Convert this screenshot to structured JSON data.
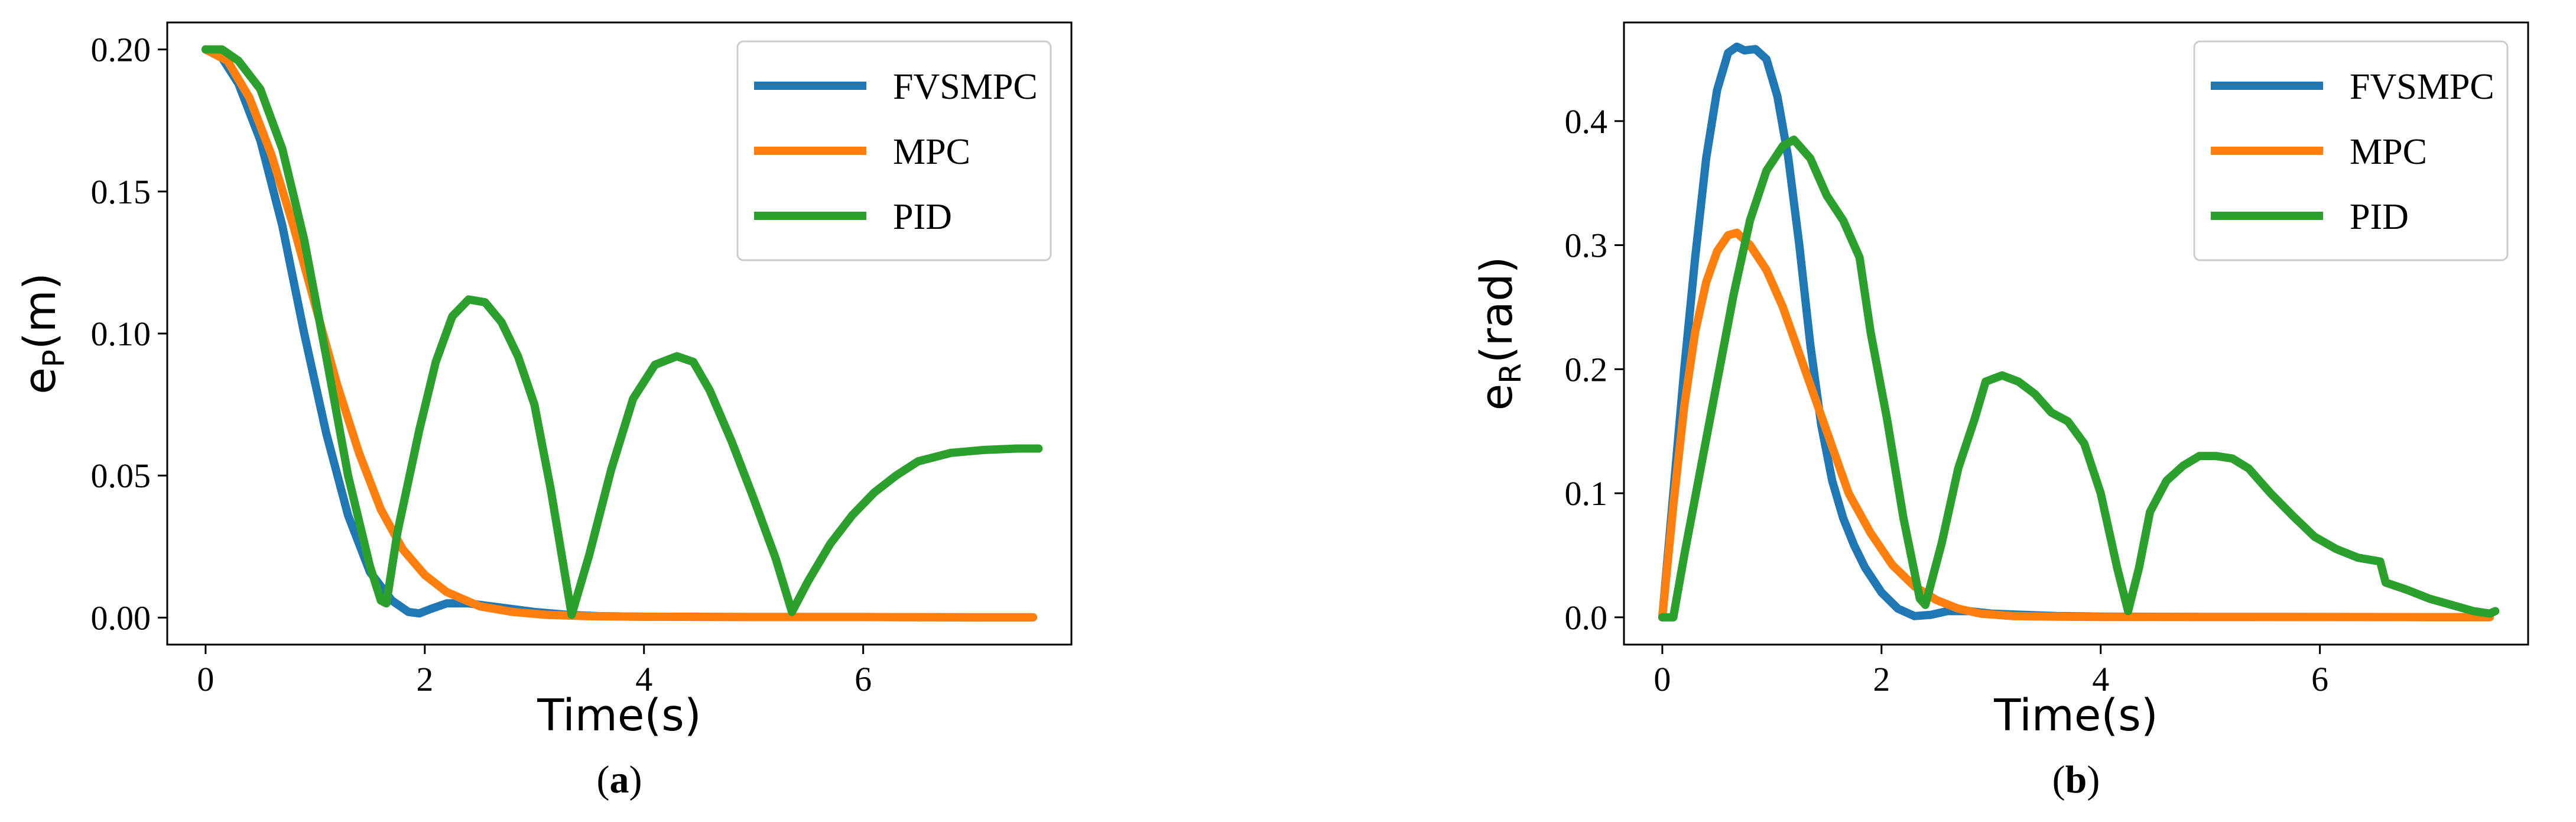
{
  "chart_data": [
    {
      "type": "line",
      "caption": "(a)",
      "caption_letter": "a",
      "xlabel": "Time(s)",
      "ylabel_main": "e",
      "ylabel_sub": "P",
      "ylabel_unit": "(m)",
      "xlim": [
        -0.35,
        7.9
      ],
      "ylim": [
        -0.0095,
        0.2095
      ],
      "xticks": [
        0,
        2,
        4,
        6
      ],
      "xtick_labels": [
        "0",
        "2",
        "4",
        "6"
      ],
      "yticks": [
        0.0,
        0.05,
        0.1,
        0.15,
        0.2
      ],
      "ytick_labels": [
        "0.00",
        "0.05",
        "0.10",
        "0.15",
        "0.20"
      ],
      "legend_position": "top-right",
      "series": [
        {
          "name": "FVSMPC",
          "color": "#1f77b4",
          "x": [
            0,
            0.15,
            0.3,
            0.5,
            0.7,
            0.9,
            1.1,
            1.3,
            1.5,
            1.7,
            1.85,
            1.95,
            2.05,
            2.2,
            2.4,
            2.6,
            2.8,
            3.0,
            3.3,
            3.6,
            4.0,
            5.0,
            6.0,
            7.0,
            7.55
          ],
          "y": [
            0.2,
            0.197,
            0.188,
            0.168,
            0.138,
            0.1,
            0.065,
            0.036,
            0.016,
            0.006,
            0.002,
            0.0015,
            0.003,
            0.005,
            0.005,
            0.004,
            0.003,
            0.002,
            0.001,
            0.0005,
            0.0003,
            0.0002,
            0.0002,
            0.0001,
            0.0001
          ]
        },
        {
          "name": "MPC",
          "color": "#ff7f0e",
          "x": [
            0,
            0.2,
            0.4,
            0.6,
            0.8,
            1.0,
            1.2,
            1.4,
            1.6,
            1.8,
            2.0,
            2.2,
            2.5,
            2.8,
            3.1,
            3.5,
            4.0,
            5.0,
            6.0,
            7.0,
            7.55
          ],
          "y": [
            0.2,
            0.196,
            0.183,
            0.163,
            0.138,
            0.11,
            0.082,
            0.058,
            0.038,
            0.024,
            0.015,
            0.009,
            0.004,
            0.002,
            0.001,
            0.0005,
            0.0003,
            0.0002,
            0.0002,
            0.0001,
            0.0001
          ]
        },
        {
          "name": "PID",
          "color": "#2ca02c",
          "x": [
            0,
            0.15,
            0.3,
            0.5,
            0.7,
            0.9,
            1.1,
            1.3,
            1.5,
            1.6,
            1.65,
            1.75,
            1.85,
            1.95,
            2.1,
            2.25,
            2.4,
            2.55,
            2.7,
            2.85,
            3.0,
            3.15,
            3.34,
            3.5,
            3.7,
            3.9,
            4.1,
            4.3,
            4.45,
            4.6,
            4.8,
            5.0,
            5.2,
            5.35,
            5.5,
            5.7,
            5.9,
            6.1,
            6.3,
            6.5,
            6.8,
            7.1,
            7.4,
            7.6
          ],
          "y": [
            0.2,
            0.2,
            0.196,
            0.186,
            0.165,
            0.133,
            0.092,
            0.05,
            0.018,
            0.006,
            0.005,
            0.03,
            0.048,
            0.066,
            0.09,
            0.106,
            0.112,
            0.111,
            0.104,
            0.092,
            0.075,
            0.045,
            0.001,
            0.022,
            0.052,
            0.077,
            0.089,
            0.092,
            0.09,
            0.08,
            0.062,
            0.042,
            0.021,
            0.002,
            0.013,
            0.026,
            0.036,
            0.044,
            0.05,
            0.055,
            0.058,
            0.059,
            0.0595,
            0.0595
          ]
        }
      ]
    },
    {
      "type": "line",
      "caption": "(b)",
      "caption_letter": "b",
      "xlabel": "Time(s)",
      "ylabel_main": "e",
      "ylabel_sub": "R",
      "ylabel_unit": "(rad)",
      "xlim": [
        -0.35,
        7.9
      ],
      "ylim": [
        -0.022,
        0.4795
      ],
      "xticks": [
        0,
        2,
        4,
        6
      ],
      "xtick_labels": [
        "0",
        "2",
        "4",
        "6"
      ],
      "yticks": [
        0.0,
        0.1,
        0.2,
        0.3,
        0.4
      ],
      "ytick_labels": [
        "0.0",
        "0.1",
        "0.2",
        "0.3",
        "0.4"
      ],
      "legend_position": "top-right",
      "series": [
        {
          "name": "FVSMPC",
          "color": "#1f77b4",
          "x": [
            0,
            0.1,
            0.2,
            0.3,
            0.4,
            0.5,
            0.6,
            0.68,
            0.75,
            0.85,
            0.95,
            1.05,
            1.15,
            1.25,
            1.35,
            1.45,
            1.55,
            1.65,
            1.75,
            1.85,
            2.0,
            2.15,
            2.3,
            2.45,
            2.6,
            2.8,
            3.0,
            3.3,
            3.6,
            4.0,
            5.0,
            6.0,
            7.0,
            7.55
          ],
          "y": [
            0.0,
            0.1,
            0.2,
            0.29,
            0.37,
            0.425,
            0.455,
            0.46,
            0.457,
            0.458,
            0.45,
            0.42,
            0.37,
            0.3,
            0.22,
            0.155,
            0.11,
            0.08,
            0.058,
            0.04,
            0.02,
            0.007,
            0.001,
            0.002,
            0.005,
            0.005,
            0.003,
            0.002,
            0.001,
            0.0005,
            0.0003,
            0.0002,
            0.0001,
            0.0001
          ]
        },
        {
          "name": "MPC",
          "color": "#ff7f0e",
          "x": [
            0,
            0.1,
            0.2,
            0.3,
            0.4,
            0.5,
            0.6,
            0.68,
            0.8,
            0.95,
            1.1,
            1.3,
            1.5,
            1.7,
            1.9,
            2.1,
            2.3,
            2.5,
            2.7,
            2.9,
            3.2,
            3.6,
            4.0,
            5.0,
            6.0,
            7.0,
            7.55
          ],
          "y": [
            0.0,
            0.09,
            0.17,
            0.23,
            0.27,
            0.295,
            0.308,
            0.31,
            0.3,
            0.28,
            0.25,
            0.2,
            0.15,
            0.1,
            0.068,
            0.042,
            0.025,
            0.014,
            0.007,
            0.003,
            0.001,
            0.0005,
            0.0003,
            0.0002,
            0.0002,
            0.0001,
            0.0001
          ]
        },
        {
          "name": "PID",
          "color": "#2ca02c",
          "x": [
            0,
            0.1,
            0.2,
            0.35,
            0.5,
            0.65,
            0.8,
            0.95,
            1.1,
            1.2,
            1.35,
            1.5,
            1.65,
            1.8,
            1.9,
            2.05,
            2.2,
            2.35,
            2.4,
            2.55,
            2.7,
            2.85,
            2.95,
            3.1,
            3.25,
            3.4,
            3.55,
            3.7,
            3.85,
            4.0,
            4.15,
            4.25,
            4.35,
            4.45,
            4.6,
            4.75,
            4.9,
            5.05,
            5.2,
            5.35,
            5.55,
            5.75,
            5.95,
            6.15,
            6.35,
            6.55,
            6.6,
            6.8,
            7.0,
            7.2,
            7.4,
            7.55,
            7.6
          ],
          "y": [
            0.0,
            0.0,
            0.05,
            0.12,
            0.19,
            0.26,
            0.32,
            0.36,
            0.38,
            0.385,
            0.37,
            0.34,
            0.32,
            0.29,
            0.23,
            0.16,
            0.08,
            0.015,
            0.01,
            0.06,
            0.12,
            0.16,
            0.19,
            0.195,
            0.19,
            0.18,
            0.165,
            0.158,
            0.14,
            0.1,
            0.04,
            0.005,
            0.04,
            0.085,
            0.11,
            0.122,
            0.13,
            0.13,
            0.128,
            0.12,
            0.1,
            0.082,
            0.065,
            0.055,
            0.048,
            0.045,
            0.028,
            0.022,
            0.015,
            0.01,
            0.005,
            0.003,
            0.005
          ]
        }
      ]
    }
  ]
}
